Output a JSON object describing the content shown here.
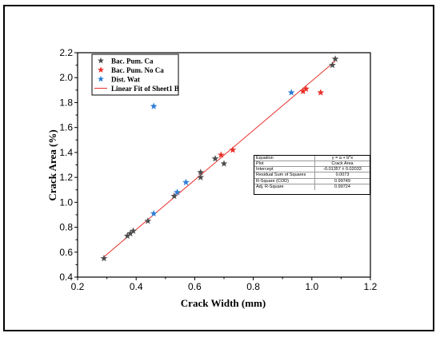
{
  "chart_data": {
    "type": "scatter",
    "xlabel": "Crack Width (mm)",
    "ylabel": "Crack Area (%)",
    "xlim": [
      0.2,
      1.2
    ],
    "ylim": [
      0.4,
      2.2
    ],
    "xticks": [
      "0.2",
      "0.4",
      "0.6",
      "0.8",
      "1.0",
      "1.2"
    ],
    "yticks": [
      "0.4",
      "0.6",
      "0.8",
      "1.0",
      "1.2",
      "1.4",
      "1.6",
      "1.8",
      "2.0",
      "2.2"
    ],
    "legend_position": "top-left",
    "series": [
      {
        "name": "Bac. Pum. Ca",
        "color": "#4d4d4d",
        "marker": "star",
        "points": [
          [
            0.29,
            0.55
          ],
          [
            0.37,
            0.73
          ],
          [
            0.38,
            0.75
          ],
          [
            0.39,
            0.77
          ],
          [
            0.44,
            0.85
          ],
          [
            0.53,
            1.05
          ],
          [
            0.62,
            1.2
          ],
          [
            0.62,
            1.24
          ],
          [
            0.67,
            1.35
          ],
          [
            0.7,
            1.31
          ],
          [
            1.07,
            2.1
          ],
          [
            1.08,
            2.15
          ]
        ]
      },
      {
        "name": "Bac. Pum. No Ca",
        "color": "#e8302a",
        "marker": "star",
        "points": [
          [
            0.69,
            1.38
          ],
          [
            0.73,
            1.42
          ],
          [
            0.97,
            1.89
          ],
          [
            0.98,
            1.91
          ],
          [
            1.03,
            1.88
          ]
        ]
      },
      {
        "name": "Dist. Wat",
        "color": "#2e7dd7",
        "marker": "star",
        "points": [
          [
            0.46,
            0.91
          ],
          [
            0.54,
            1.08
          ],
          [
            0.57,
            1.16
          ],
          [
            0.46,
            1.77
          ],
          [
            0.93,
            1.88
          ]
        ]
      }
    ],
    "fit_line": {
      "name": "Linear Fit of Sheet1 B",
      "color": "#e8302a",
      "intercept": -0.01357,
      "slope": 1.9876,
      "x_range": [
        0.29,
        1.08
      ]
    },
    "fit_table": [
      {
        "key": "Equation",
        "value": "y = a + b*x"
      },
      {
        "key": "Plot",
        "value": "Crack Area"
      },
      {
        "key": "Intercept",
        "value": "-0.01357 ± 0.02033"
      },
      {
        "key": "Residual Sum of Squares",
        "value": "0.0073"
      },
      {
        "key": "R-Square (COD)",
        "value": "0.99749"
      },
      {
        "key": "Adj. R-Square",
        "value": "0.99724"
      }
    ]
  }
}
